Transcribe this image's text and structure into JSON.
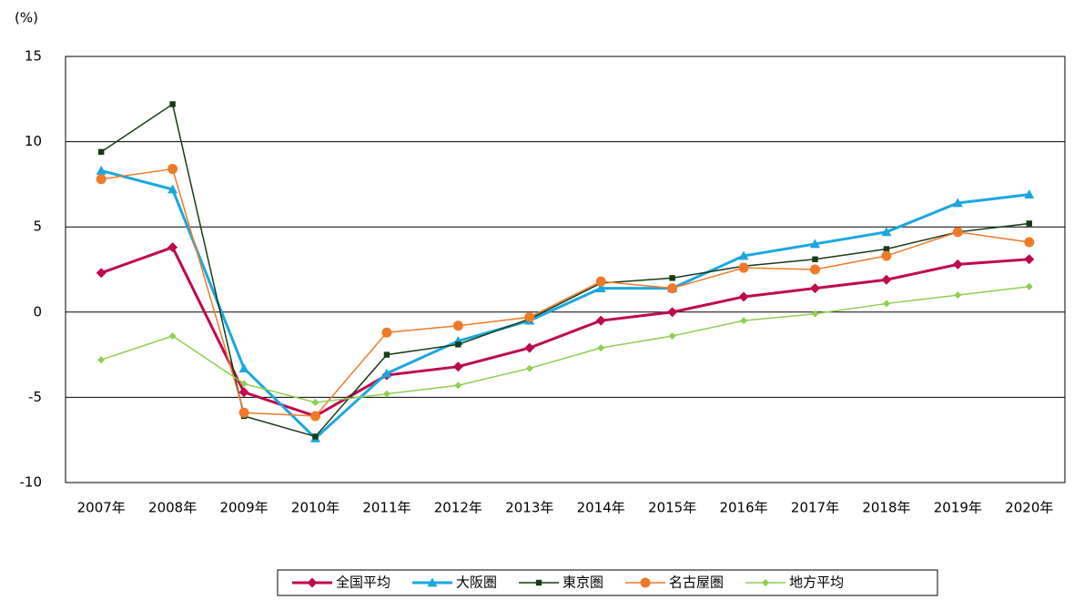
{
  "chart_data": {
    "type": "line",
    "y_label": "(%)",
    "categories": [
      "2007年",
      "2008年",
      "2009年",
      "2010年",
      "2011年",
      "2012年",
      "2013年",
      "2014年",
      "2015年",
      "2016年",
      "2017年",
      "2018年",
      "2019年",
      "2020年"
    ],
    "series": [
      {
        "name": "全国平均",
        "color": "#c0094f",
        "marker": "diamond",
        "width": 3,
        "values": [
          2.3,
          3.8,
          -4.7,
          -6.1,
          -3.7,
          -3.2,
          -2.1,
          -0.5,
          0,
          0.9,
          1.4,
          1.9,
          2.8,
          3.1
        ]
      },
      {
        "name": "大阪圏",
        "color": "#1aa7e0",
        "marker": "triangle",
        "width": 3,
        "values": [
          8.3,
          7.2,
          -3.3,
          -7.4,
          -3.6,
          -1.7,
          -0.5,
          1.4,
          1.4,
          3.3,
          4.0,
          4.7,
          6.4,
          6.9
        ]
      },
      {
        "name": "東京圏",
        "color": "#173b17",
        "marker": "square",
        "width": 1.5,
        "values": [
          9.4,
          12.2,
          -6.1,
          -7.3,
          -2.5,
          -1.9,
          -0.4,
          1.7,
          2.0,
          2.7,
          3.1,
          3.7,
          4.7,
          5.2
        ]
      },
      {
        "name": "名古屋圏",
        "color": "#f07a28",
        "marker": "circle",
        "width": 1.5,
        "values": [
          7.8,
          8.4,
          -5.9,
          -6.1,
          -1.2,
          -0.8,
          -0.3,
          1.8,
          1.4,
          2.6,
          2.5,
          3.3,
          4.7,
          4.1
        ]
      },
      {
        "name": "地方平均",
        "color": "#8fcf50",
        "marker": "diamond",
        "width": 1.5,
        "values": [
          -2.8,
          -1.4,
          -4.2,
          -5.3,
          -4.8,
          -4.3,
          -3.3,
          -2.1,
          -1.4,
          -0.5,
          -0.1,
          0.5,
          1.0,
          1.5
        ]
      }
    ],
    "ylim": [
      -10,
      15
    ],
    "yticks": [
      -10,
      -5,
      0,
      5,
      10,
      15
    ],
    "grid": true,
    "legend": "bottom"
  }
}
